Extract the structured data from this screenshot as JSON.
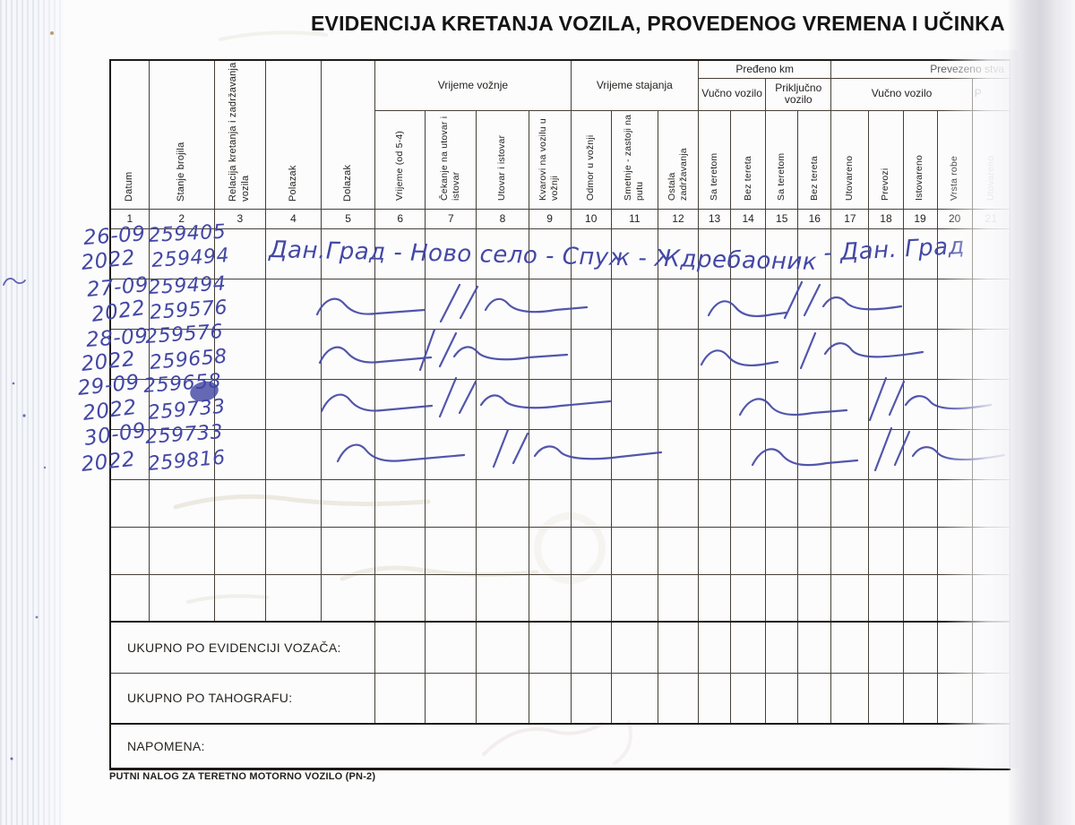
{
  "title": "EVIDENCIJA KRETANJA VOZILA, PROVEDENOG VREMENA I UČINKA",
  "footer_note": "PUTNI NALOG ZA TERETNO MOTORNO VOZILO (PN-2)",
  "ink_color": "#4448a4",
  "table": {
    "groups": {
      "vrijeme_voznje": "Vrijeme vožnje",
      "vrijeme_stajanja": "Vrijeme stajanja",
      "predeno_km": "Pređeno km",
      "prevezeno": "Prevezeno stva",
      "vucno_km": "Vučno vozilo",
      "prikljucno_km": "Priključno vozilo",
      "vucno_prevezeno": "Vučno vozilo",
      "partial_right": "P"
    },
    "columns": [
      {
        "num": "1",
        "label": "Datum"
      },
      {
        "num": "2",
        "label": "Stanje brojila"
      },
      {
        "num": "3",
        "label": "Relacija kretanja i zadržavanja vozila"
      },
      {
        "num": "4",
        "label": "Polazak"
      },
      {
        "num": "5",
        "label": "Dolazak"
      },
      {
        "num": "6",
        "label": "Vrijeme (od 5-4)"
      },
      {
        "num": "7",
        "label": "Čekanje na utovar i istovar"
      },
      {
        "num": "8",
        "label": "Utovar i istovar"
      },
      {
        "num": "9",
        "label": "Kvarovi na vozilu u vožnji"
      },
      {
        "num": "10",
        "label": "Odmor u vožnji"
      },
      {
        "num": "11",
        "label": "Smetnje - zastoji na putu"
      },
      {
        "num": "12",
        "label": "Ostala zadržavanja"
      },
      {
        "num": "13",
        "label": "Sa teretom"
      },
      {
        "num": "14",
        "label": "Bez tereta"
      },
      {
        "num": "15",
        "label": "Sa teretom"
      },
      {
        "num": "16",
        "label": "Bez tereta"
      },
      {
        "num": "17",
        "label": "Utovareno"
      },
      {
        "num": "18",
        "label": "Prevozi"
      },
      {
        "num": "19",
        "label": "Istovareno"
      },
      {
        "num": "20",
        "label": "Vrsta robe"
      },
      {
        "num": "21",
        "label": "Utovareno"
      }
    ],
    "totals": {
      "evidencija": "UKUPNO PO EVIDENCIJI VOZAČA:",
      "tahograf": "UKUPNO PO TAHOGRAFU:",
      "napomena": "NAPOMENA:"
    }
  },
  "entries": [
    {
      "date_top": "26-09",
      "date_bottom": "2022",
      "odo_top": "259405",
      "odo_bottom": "259494",
      "route": "Дан.Град - Ново село - Спуж - Ждребаоник",
      "route_end": "- Дан. Град"
    },
    {
      "date_top": "27-09",
      "date_bottom": "2022",
      "odo_top": "259494",
      "odo_bottom": "259576"
    },
    {
      "date_top": "28-09",
      "date_bottom": "2022",
      "odo_top": "259576",
      "odo_bottom": "259658"
    },
    {
      "date_top": "29-09",
      "date_bottom": "2022",
      "odo_top": "259658",
      "odo_bottom": "259733"
    },
    {
      "date_top": "30-09",
      "date_bottom": "2022",
      "odo_top": "259733",
      "odo_bottom": "259816"
    }
  ]
}
